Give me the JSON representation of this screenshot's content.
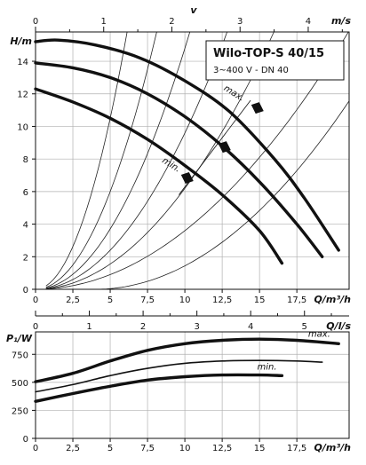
{
  "chart_data": [
    {
      "type": "line",
      "title": "Wilo-TOP-S 40/15",
      "subtitle": "3~400 V - DN 40",
      "xlabel": "Q/m³/h",
      "ylabel": "H/m",
      "xlim": [
        0,
        21
      ],
      "ylim": [
        0,
        15.8
      ],
      "xticks": [
        0,
        2.5,
        5,
        7.5,
        10,
        12.5,
        15,
        17.5
      ],
      "xtick_labels": [
        "0",
        "2,5",
        "5",
        "7,5",
        "10",
        "12,5",
        "15",
        "17,5"
      ],
      "yticks": [
        0,
        2,
        4,
        6,
        8,
        10,
        12,
        14
      ],
      "top_axis": {
        "label": "v",
        "unit": "m/s",
        "lim": [
          0,
          4.6
        ],
        "ticks": [
          0,
          1,
          2,
          3,
          4
        ],
        "tick_labels": [
          "0",
          "1",
          "2",
          "3",
          "4"
        ]
      },
      "grid": true,
      "series": [
        {
          "name": "max.",
          "x": [
            0,
            1.5,
            4,
            7,
            10,
            13,
            16,
            18,
            20.3
          ],
          "y": [
            15.2,
            15.3,
            15.0,
            14.2,
            12.8,
            10.9,
            8.0,
            5.6,
            2.4
          ]
        },
        {
          "x": [
            0,
            2.5,
            5,
            7.5,
            10,
            12.5,
            15,
            17.5,
            19.2
          ],
          "y": [
            13.9,
            13.6,
            13.0,
            12.0,
            10.6,
            8.8,
            6.6,
            4.0,
            2.0
          ]
        },
        {
          "name": "min.",
          "x": [
            0,
            2.5,
            5,
            7.5,
            10,
            12.5,
            15,
            16.5
          ],
          "y": [
            12.3,
            11.5,
            10.5,
            9.2,
            7.6,
            5.8,
            3.6,
            1.6
          ]
        }
      ],
      "annotations": [
        "max.",
        "min."
      ]
    },
    {
      "type": "line",
      "xlabel": "Q/m³/h",
      "ylabel": "P₁/W",
      "xlim": [
        0,
        21
      ],
      "ylim": [
        0,
        950
      ],
      "xticks": [
        0,
        2.5,
        5,
        7.5,
        10,
        12.5,
        15,
        17.5
      ],
      "xtick_labels": [
        "0",
        "2,5",
        "5",
        "7,5",
        "10",
        "12,5",
        "15",
        "17,5"
      ],
      "yticks": [
        0,
        250,
        500,
        750
      ],
      "top_axis": {
        "label": "Q/l/s",
        "lim": [
          0,
          5.83
        ],
        "ticks": [
          0,
          1,
          2,
          3,
          4,
          5
        ],
        "tick_labels": [
          "0",
          "1",
          "2",
          "3",
          "4",
          "5"
        ]
      },
      "grid": true,
      "series": [
        {
          "name": "max.",
          "x": [
            0,
            2.5,
            5,
            7.5,
            10,
            12.5,
            15,
            17.5,
            20.3
          ],
          "y": [
            505,
            580,
            690,
            785,
            845,
            875,
            885,
            875,
            845
          ]
        },
        {
          "x": [
            0,
            2.5,
            5,
            7.5,
            10,
            12.5,
            15,
            17.5,
            19.2
          ],
          "y": [
            415,
            480,
            560,
            625,
            670,
            690,
            695,
            690,
            680
          ]
        },
        {
          "name": "min.",
          "x": [
            0,
            2.5,
            5,
            7.5,
            10,
            12.5,
            15,
            16.5
          ],
          "y": [
            330,
            400,
            465,
            520,
            550,
            565,
            565,
            560
          ]
        }
      ],
      "annotations": [
        "max.",
        "min."
      ]
    }
  ]
}
